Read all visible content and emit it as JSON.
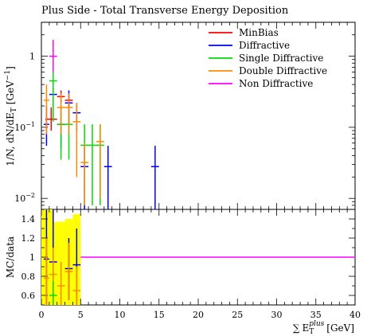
{
  "chart_data": {
    "type": "line",
    "title": "Plus Side - Total Transverse Energy Deposition",
    "ylabel": "1/N dN/dE_T [GeV^-1]",
    "ylabel_parts": {
      "main": "1/N, dN/dE",
      "sub": "T",
      "unit_open": " [GeV",
      "sup": "−1",
      "unit_close": "]"
    },
    "ratio_ylabel": "MC/data",
    "xlabel": "∑ E_T^plus [GeV]",
    "xlabel_parts": {
      "sum": "∑",
      "E": "E",
      "sub": "T",
      "sup": "plus",
      "unit": "[GeV]"
    },
    "xlim": [
      0,
      40
    ],
    "ylim": [
      0.007,
      3
    ],
    "yscale": "log",
    "ratio_ylim": [
      0.5,
      1.5
    ],
    "x_ticks": [
      "0",
      "5",
      "10",
      "15",
      "20",
      "25",
      "30",
      "35",
      "40"
    ],
    "y_ticks": [
      "10^-2",
      "10^-1",
      "1"
    ],
    "ratio_ticks": [
      "0.6",
      "0.8",
      "1",
      "1.2",
      "1.4"
    ],
    "legend_position": "top-right",
    "series": [
      {
        "name": "MinBias",
        "color": "#ff0000",
        "points": [
          {
            "x0": 0.5,
            "x1": 2,
            "y": 0.13,
            "ylo": 0.09,
            "yhi": 0.19
          },
          {
            "x0": 2,
            "x1": 3,
            "y": 0.27,
            "ylo": 0.22,
            "yhi": 0.33
          },
          {
            "x0": 3,
            "x1": 4,
            "y": 0.24,
            "ylo": 0.2,
            "yhi": 0.29
          }
        ]
      },
      {
        "name": "Diffractive",
        "color": "#0000ff",
        "points": [
          {
            "x0": 0.3,
            "x1": 1,
            "y": 0.11,
            "ylo": 0.055,
            "yhi": 0.2
          },
          {
            "x0": 1,
            "x1": 2,
            "y": 0.29,
            "ylo": 0.13,
            "yhi": 0.45
          },
          {
            "x0": 2,
            "x1": 3,
            "y": 0.11,
            "ylo": 0.05,
            "yhi": 0.2
          },
          {
            "x0": 3,
            "x1": 4,
            "y": 0.22,
            "ylo": 0.11,
            "yhi": 0.33
          },
          {
            "x0": 4,
            "x1": 5,
            "y": 0.16,
            "ylo": 0.09,
            "yhi": 0.22
          },
          {
            "x0": 5,
            "x1": 6,
            "y": 0.028,
            "ylo": 0.007,
            "yhi": 0.055
          },
          {
            "x0": 8,
            "x1": 9,
            "y": 0.028,
            "ylo": 0.007,
            "yhi": 0.055
          },
          {
            "x0": 14,
            "x1": 15,
            "y": 0.028,
            "ylo": 0.007,
            "yhi": 0.055
          }
        ]
      },
      {
        "name": "Single Diffractive",
        "color": "#00dd00",
        "points": [
          {
            "x0": 1,
            "x1": 2,
            "y": 0.45,
            "ylo": 0.12,
            "yhi": 0.62
          },
          {
            "x0": 2,
            "x1": 3,
            "y": 0.11,
            "ylo": 0.035,
            "yhi": 0.2
          },
          {
            "x0": 3,
            "x1": 4,
            "y": 0.11,
            "ylo": 0.035,
            "yhi": 0.2
          },
          {
            "x0": 5,
            "x1": 6,
            "y": 0.056,
            "ylo": 0.008,
            "yhi": 0.11
          },
          {
            "x0": 6,
            "x1": 7,
            "y": 0.056,
            "ylo": 0.008,
            "yhi": 0.11
          },
          {
            "x0": 7,
            "x1": 8,
            "y": 0.056,
            "ylo": 0.008,
            "yhi": 0.11
          }
        ]
      },
      {
        "name": "Double Diffractive",
        "color": "#ff8800",
        "points": [
          {
            "x0": 0.3,
            "x1": 1,
            "y": 0.24,
            "ylo": 0.08,
            "yhi": 0.4
          },
          {
            "x0": 2,
            "x1": 3,
            "y": 0.19,
            "ylo": 0.08,
            "yhi": 0.3
          },
          {
            "x0": 3,
            "x1": 4,
            "y": 0.19,
            "ylo": 0.08,
            "yhi": 0.3
          },
          {
            "x0": 4,
            "x1": 5,
            "y": 0.12,
            "ylo": 0.02,
            "yhi": 0.22
          },
          {
            "x0": 5,
            "x1": 6,
            "y": 0.032,
            "ylo": 0.008,
            "yhi": 0.06
          },
          {
            "x0": 7,
            "x1": 8,
            "y": 0.063,
            "ylo": 0.01,
            "yhi": 0.11
          }
        ]
      },
      {
        "name": "Non Diffractive",
        "color": "#ff00ff",
        "points": [
          {
            "x0": 1,
            "x1": 2,
            "y": 1.0,
            "ylo": 0.6,
            "yhi": 1.7
          }
        ]
      }
    ],
    "ratio_band": {
      "color": "#ffff00",
      "bins": [
        {
          "x0": 0,
          "x1": 1.5,
          "lo": 0.5,
          "hi": 1.5
        },
        {
          "x0": 1.5,
          "x1": 3,
          "lo": 0.5,
          "hi": 1.37
        },
        {
          "x0": 3,
          "x1": 4,
          "lo": 0.5,
          "hi": 1.4
        },
        {
          "x0": 4,
          "x1": 5,
          "lo": 0.5,
          "hi": 1.45
        }
      ]
    },
    "ratio_points": [
      {
        "color": "#0000ff",
        "x0": 0.3,
        "x1": 1,
        "y": 0.98,
        "ylo": 0.5,
        "yhi": 1.5
      },
      {
        "color": "#0000ff",
        "x0": 1,
        "x1": 2,
        "y": 0.95,
        "ylo": 0.5,
        "yhi": 1.5
      },
      {
        "color": "#0000ff",
        "x0": 3,
        "x1": 4,
        "y": 0.88,
        "ylo": 0.55,
        "yhi": 1.2
      },
      {
        "color": "#0000ff",
        "x0": 4,
        "x1": 5,
        "y": 0.92,
        "ylo": 0.5,
        "yhi": 1.3
      },
      {
        "color": "#ff8800",
        "x0": 0.3,
        "x1": 1,
        "y": 0.78,
        "ylo": 0.5,
        "yhi": 1.2
      },
      {
        "color": "#ff8800",
        "x0": 1,
        "x1": 2,
        "y": 0.82,
        "ylo": 0.5,
        "yhi": 1.1
      },
      {
        "color": "#ff8800",
        "x0": 2,
        "x1": 3,
        "y": 0.7,
        "ylo": 0.5,
        "yhi": 0.95
      },
      {
        "color": "#ff8800",
        "x0": 3,
        "x1": 4,
        "y": 0.85,
        "ylo": 0.55,
        "yhi": 1.15
      },
      {
        "color": "#ff8800",
        "x0": 4,
        "x1": 5,
        "y": 0.65,
        "ylo": 0.5,
        "yhi": 0.9
      },
      {
        "color": "#00dd00",
        "x0": 1,
        "x1": 2,
        "y": 0.6,
        "ylo": 0.5,
        "yhi": 0.75
      }
    ],
    "ratio_line": {
      "color": "#ff00ff",
      "x0": 5,
      "x1": 40,
      "y": 1.0
    }
  }
}
